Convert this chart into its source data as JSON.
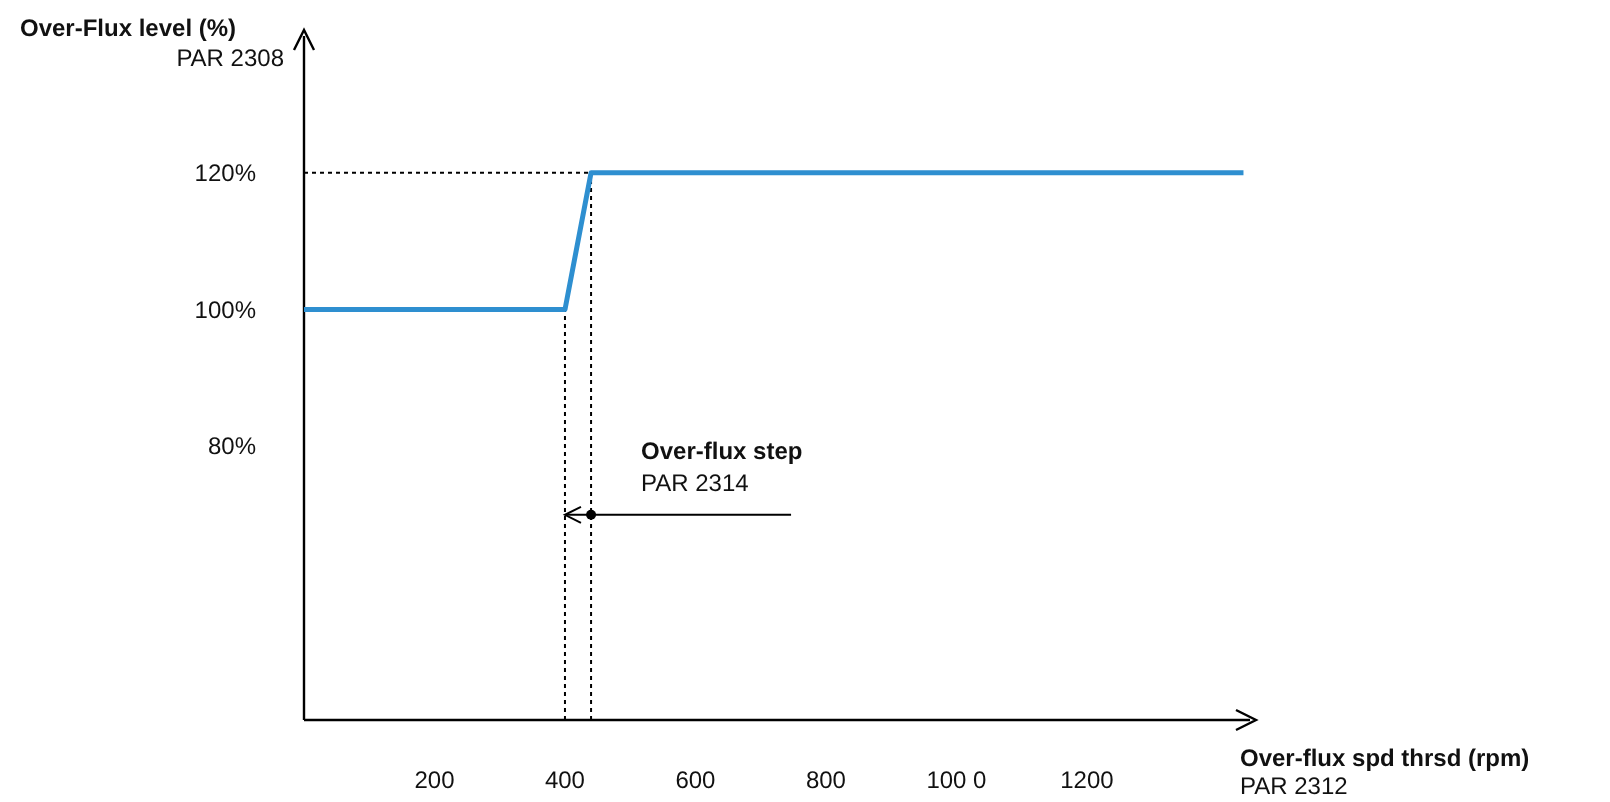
{
  "chart_data": {
    "type": "line",
    "ylabel": "Over-Flux level (%)",
    "xlabel": "Over-flux spd thrsd (rpm)",
    "annotations": [
      "PAR 2308",
      "PAR 2312",
      {
        "text": "Over-flux step",
        "x": 440,
        "y": 70
      },
      {
        "text": "PAR 2314",
        "x": 440,
        "y": 70
      }
    ],
    "x": [
      0,
      400,
      440,
      1440
    ],
    "series": [
      {
        "color": "#2e8fd0",
        "values": [
          100,
          100,
          120,
          120
        ]
      }
    ],
    "xlim": [
      0,
      1450
    ],
    "ylim": [
      40,
      140
    ],
    "xticks": [
      200,
      400,
      600,
      800,
      {
        "value": 1000,
        "label": "100 0"
      },
      1200
    ],
    "yticks": [
      {
        "value": 80,
        "label": "80%"
      },
      {
        "value": 100,
        "label": "100%"
      },
      {
        "value": 120,
        "label": "120%"
      }
    ],
    "ref_lines": [
      {
        "axis": "x",
        "value": 400,
        "line_style": "dotted"
      },
      {
        "axis": "x",
        "value": 440,
        "line_style": "dotted"
      },
      {
        "axis": "y",
        "value": 120,
        "line_style": "dotted"
      }
    ],
    "grid": false,
    "marker": "none",
    "line_style": "solid"
  }
}
